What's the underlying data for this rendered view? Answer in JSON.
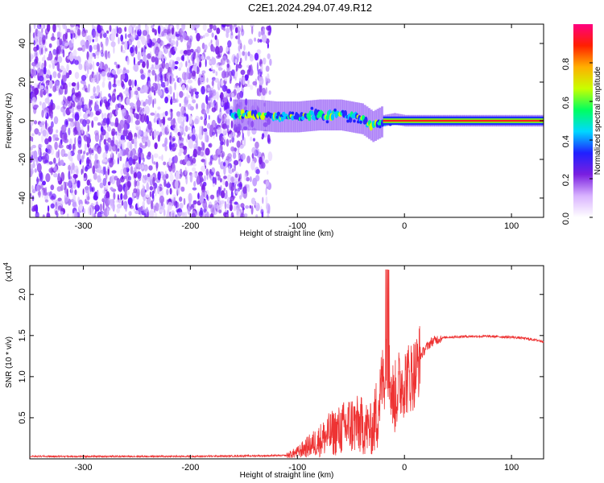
{
  "title": "C2E1.2024.294.07.49.R12",
  "chart_data": [
    {
      "type": "heatmap",
      "xlabel": "Height of straight line (km)",
      "ylabel": "Frequency (Hz)",
      "xlim": [
        -350,
        130
      ],
      "ylim": [
        -50,
        50
      ],
      "xticks": [
        -300,
        -200,
        -100,
        0,
        100
      ],
      "yticks": [
        -40,
        -20,
        0,
        20,
        40
      ],
      "colorbar": {
        "label": "Normalized spectral amplitude",
        "range": [
          0,
          1
        ],
        "ticks": [
          "0.0",
          "0.2",
          "0.4",
          "0.6",
          "0.8"
        ],
        "colors": [
          "#ffffff",
          "#d9b3ff",
          "#7a1fe0",
          "#2020ff",
          "#00d8ff",
          "#00ff60",
          "#c8ff00",
          "#ffb000",
          "#ff2000",
          "#ff0080"
        ]
      },
      "ridge": {
        "x": [
          -160,
          -140,
          -120,
          -100,
          -80,
          -60,
          -40,
          -30,
          -20,
          -10,
          0,
          50,
          130
        ],
        "y": [
          3,
          3,
          2,
          2,
          3,
          3,
          1,
          -3,
          0,
          1,
          0,
          0,
          0
        ]
      }
    },
    {
      "type": "line",
      "xlabel": "Height of straight line (km)",
      "ylabel": "SNR (10 * v/v)",
      "yscale_label": "(x10",
      "yscale_exponent": "4",
      "xlim": [
        -350,
        130
      ],
      "ylim": [
        0,
        2.35
      ],
      "xticks": [
        -300,
        -200,
        -100,
        0,
        100
      ],
      "yticks": [
        "0.5",
        "1.0",
        "1.5",
        "2.0"
      ],
      "line_color": "#ee3333",
      "series": [
        {
          "x": [
            -350,
            -200,
            -110,
            -100,
            -90,
            -80,
            -70,
            -60,
            -50,
            -40,
            -30,
            -25,
            -20,
            -15,
            -10,
            -5,
            0,
            5,
            10,
            15,
            20,
            25,
            30,
            35,
            40,
            60,
            80,
            100,
            110,
            130
          ],
          "y": [
            0.03,
            0.03,
            0.04,
            0.08,
            0.15,
            0.22,
            0.3,
            0.35,
            0.42,
            0.4,
            0.35,
            0.6,
            1.0,
            1.1,
            0.7,
            0.9,
            0.95,
            1.0,
            1.05,
            1.25,
            1.35,
            1.42,
            1.45,
            1.47,
            1.48,
            1.49,
            1.49,
            1.48,
            1.47,
            1.43
          ]
        }
      ]
    }
  ]
}
